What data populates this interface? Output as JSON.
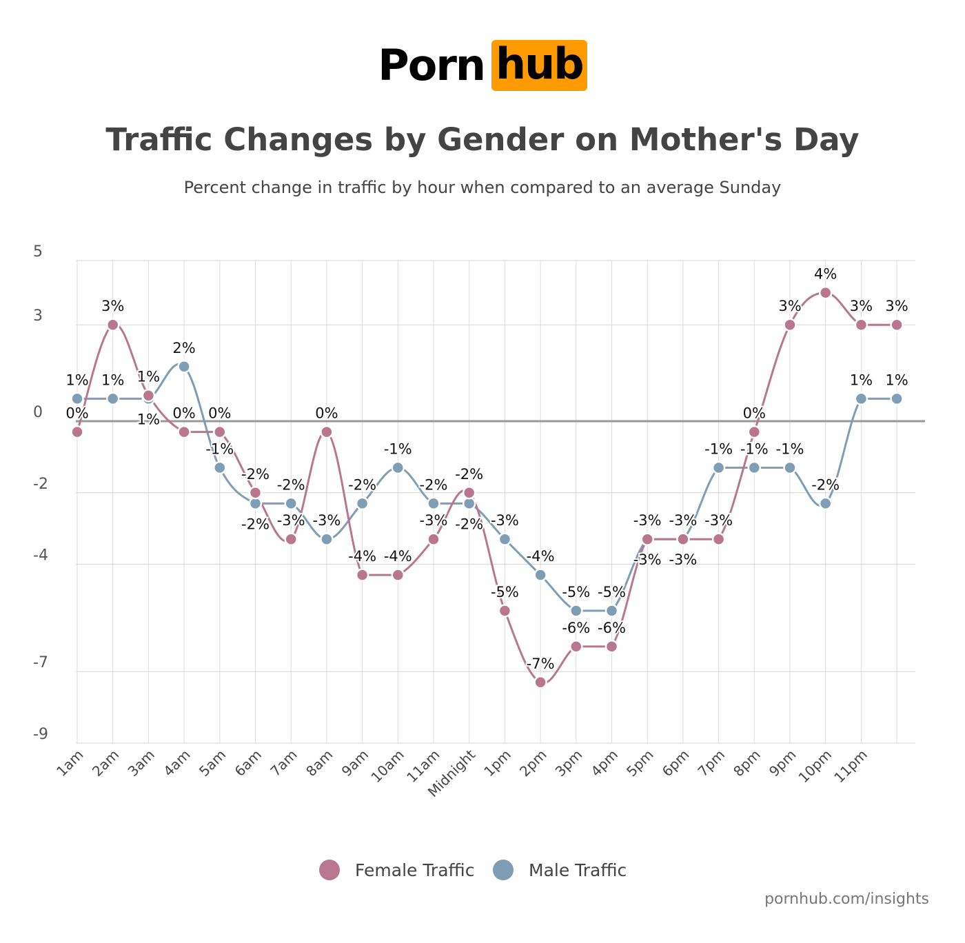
{
  "logo": {
    "part1": "Porn",
    "part2": "hub",
    "accent": "#ff9a00"
  },
  "header": {
    "title": "Traffic Changes by Gender on Mother's Day",
    "subtitle": "Percent change in traffic by hour when compared to an average Sunday"
  },
  "source": "pornhub.com/insights",
  "chart_data": {
    "type": "line",
    "title": "Traffic Changes by Gender on Mother's Day",
    "subtitle": "Percent change in traffic by hour when compared to an average Sunday",
    "xlabel": "",
    "ylabel": "",
    "categories": [
      "1am",
      "2am",
      "3am",
      "4am",
      "5am",
      "6am",
      "7am",
      "8am",
      "9am",
      "10am",
      "11am",
      "Midnight",
      "1pm",
      "2pm",
      "3pm",
      "4pm",
      "5pm",
      "6pm",
      "7pm",
      "8pm",
      "9pm",
      "10pm",
      "11pm",
      ""
    ],
    "ylim": [
      -9,
      5
    ],
    "yticks": [
      5,
      3,
      0,
      -2,
      -4,
      -7,
      -9
    ],
    "grid": true,
    "zero_line": true,
    "legend_position": "bottom-center",
    "series": [
      {
        "name": "Female Traffic",
        "color": "#b8778e",
        "values": [
          -0.3,
          3.0,
          0.8,
          -0.3,
          -0.3,
          -2.0,
          -3.3,
          -0.3,
          -4.3,
          -4.3,
          -3.3,
          -2.0,
          -5.3,
          -7.3,
          -6.3,
          -6.3,
          -3.3,
          -3.3,
          -3.3,
          -0.3,
          3.0,
          4.0,
          3.0,
          3.0
        ],
        "labels": [
          "0%",
          "3%",
          "1%",
          "0%",
          "0%",
          "-2%",
          "-3%",
          "0%",
          "-4%",
          "-4%",
          "-3%",
          "-2%",
          "-5%",
          "-7%",
          "-6%",
          "-6%",
          "-3%",
          "-3%",
          "-3%",
          "0%",
          "3%",
          "4%",
          "3%",
          "3%"
        ]
      },
      {
        "name": "Male Traffic",
        "color": "#7f9db5",
        "values": [
          0.7,
          0.7,
          0.7,
          1.7,
          -1.3,
          -2.3,
          -2.3,
          -3.3,
          -2.3,
          -1.3,
          -2.3,
          -2.3,
          -3.3,
          -4.3,
          -5.3,
          -5.3,
          -3.3,
          -3.3,
          -1.3,
          -1.3,
          -1.3,
          -2.3,
          0.7,
          0.7
        ],
        "labels": [
          "1%",
          "1%",
          "1%",
          "2%",
          "-1%",
          "-2%",
          "-2%",
          "-3%",
          "-2%",
          "-1%",
          "-2%",
          "-2%",
          "-3%",
          "-4%",
          "-5%",
          "-5%",
          "-3%",
          "-3%",
          "-1%",
          "-1%",
          "-1%",
          "-2%",
          "1%",
          "1%"
        ]
      }
    ]
  }
}
